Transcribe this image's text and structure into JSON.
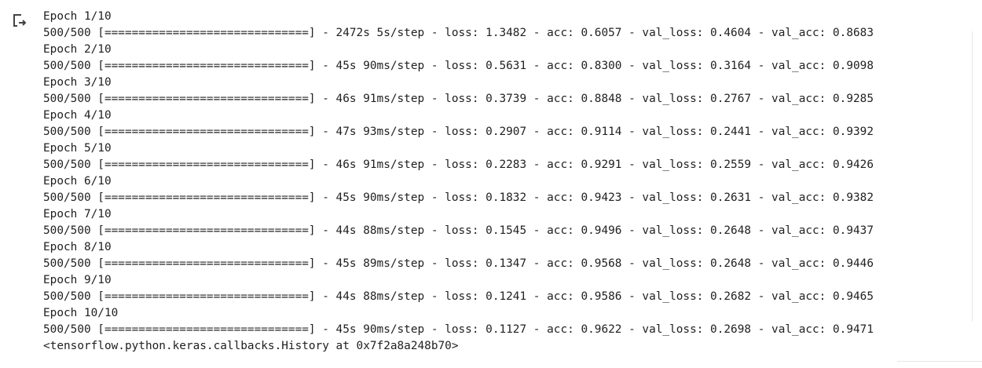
{
  "output": {
    "icon": "output-redirect-icon",
    "lines": [
      "Epoch 1/10",
      "500/500 [==============================] - 2472s 5s/step - loss: 1.3482 - acc: 0.6057 - val_loss: 0.4604 - val_acc: 0.8683",
      "Epoch 2/10",
      "500/500 [==============================] - 45s 90ms/step - loss: 0.5631 - acc: 0.8300 - val_loss: 0.3164 - val_acc: 0.9098",
      "Epoch 3/10",
      "500/500 [==============================] - 46s 91ms/step - loss: 0.3739 - acc: 0.8848 - val_loss: 0.2767 - val_acc: 0.9285",
      "Epoch 4/10",
      "500/500 [==============================] - 47s 93ms/step - loss: 0.2907 - acc: 0.9114 - val_loss: 0.2441 - val_acc: 0.9392",
      "Epoch 5/10",
      "500/500 [==============================] - 46s 91ms/step - loss: 0.2283 - acc: 0.9291 - val_loss: 0.2559 - val_acc: 0.9426",
      "Epoch 6/10",
      "500/500 [==============================] - 45s 90ms/step - loss: 0.1832 - acc: 0.9423 - val_loss: 0.2631 - val_acc: 0.9382",
      "Epoch 7/10",
      "500/500 [==============================] - 44s 88ms/step - loss: 0.1545 - acc: 0.9496 - val_loss: 0.2648 - val_acc: 0.9437",
      "Epoch 8/10",
      "500/500 [==============================] - 45s 89ms/step - loss: 0.1347 - acc: 0.9568 - val_loss: 0.2648 - val_acc: 0.9446",
      "Epoch 9/10",
      "500/500 [==============================] - 44s 88ms/step - loss: 0.1241 - acc: 0.9586 - val_loss: 0.2682 - val_acc: 0.9465",
      "Epoch 10/10",
      "500/500 [==============================] - 45s 90ms/step - loss: 0.1127 - acc: 0.9622 - val_loss: 0.2698 - val_acc: 0.9471",
      "<tensorflow.python.keras.callbacks.History at 0x7f2a8a248b70>"
    ]
  }
}
